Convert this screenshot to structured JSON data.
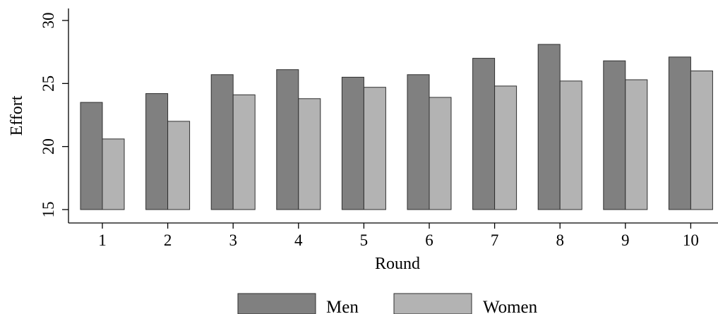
{
  "chart_data": {
    "type": "bar",
    "title": "",
    "xlabel": "Round",
    "ylabel": "Effort",
    "ylim": [
      15,
      30
    ],
    "yticks": [
      15,
      20,
      25,
      30
    ],
    "grid": false,
    "legend_position": "bottom",
    "categories": [
      "1",
      "2",
      "3",
      "4",
      "5",
      "6",
      "7",
      "8",
      "9",
      "10"
    ],
    "series": [
      {
        "name": "Men",
        "color": "#808080",
        "values": [
          23.5,
          24.2,
          25.7,
          26.1,
          25.5,
          25.7,
          27.0,
          28.1,
          26.8,
          27.1
        ]
      },
      {
        "name": "Women",
        "color": "#b3b3b3",
        "values": [
          20.6,
          22.0,
          24.1,
          23.8,
          24.7,
          23.9,
          24.8,
          25.2,
          25.3,
          26.0
        ]
      }
    ]
  }
}
